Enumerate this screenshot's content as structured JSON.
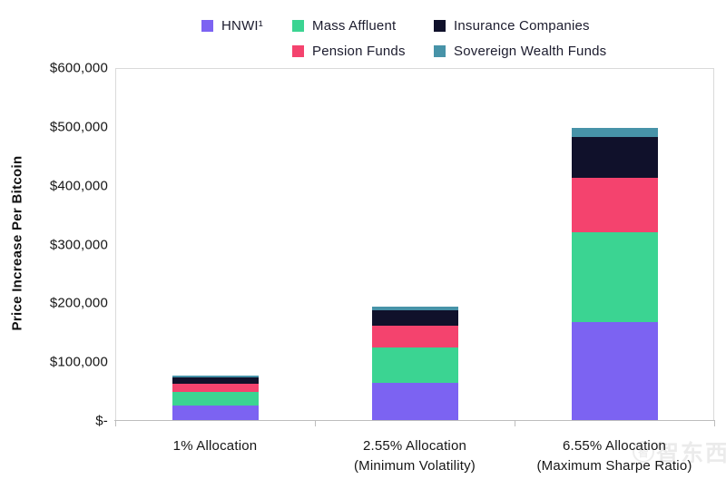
{
  "watermark": {
    "text": "智东西",
    "circle_glyph": "智"
  },
  "chart_data": {
    "type": "bar",
    "stacked": true,
    "title": "",
    "xlabel": "",
    "ylabel": "Price Increase Per Bitcoin",
    "ylim": [
      0,
      600000
    ],
    "ytick_interval": 100000,
    "ytick_labels": [
      "$-",
      "$100,000",
      "$200,000",
      "$300,000",
      "$400,000",
      "$500,000",
      "$600,000"
    ],
    "grid": false,
    "legend_position": "top",
    "categories": [
      {
        "lines": [
          "1% Allocation"
        ]
      },
      {
        "lines": [
          "2.55% Allocation",
          "(Minimum Volatility)"
        ]
      },
      {
        "lines": [
          "6.55% Allocation",
          "(Maximum Sharpe Ratio)"
        ]
      }
    ],
    "series": [
      {
        "name": "HNWI¹",
        "color": "#7c63f2",
        "values": [
          25000,
          64000,
          166000
        ]
      },
      {
        "name": "Mass Affluent",
        "color": "#3bd492",
        "values": [
          23000,
          60000,
          153000
        ]
      },
      {
        "name": "Pension Funds",
        "color": "#f4436e",
        "values": [
          14000,
          36000,
          93000
        ]
      },
      {
        "name": "Insurance Companies",
        "color": "#10112b",
        "values": [
          10500,
          27000,
          69000
        ]
      },
      {
        "name": "Sovereign Wealth Funds",
        "color": "#4793a8",
        "values": [
          2500,
          6000,
          16000
        ]
      }
    ],
    "legend_columns": [
      [
        "HNWI¹"
      ],
      [
        "Mass Affluent",
        "Pension Funds"
      ],
      [
        "Insurance Companies",
        "Sovereign Wealth Funds"
      ]
    ]
  }
}
